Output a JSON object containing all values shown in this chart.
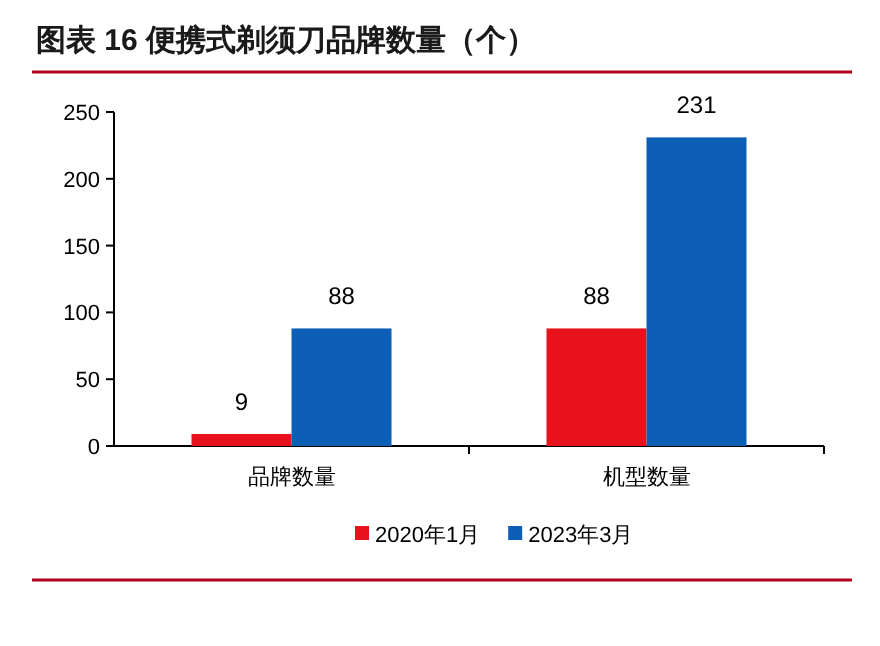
{
  "chart_data": {
    "type": "bar",
    "title": "图表 16 便携式剃须刀品牌数量（个）",
    "categories": [
      "品牌数量",
      "机型数量"
    ],
    "series": [
      {
        "name": "2020年1月",
        "color": "#e8121c",
        "values": [
          9,
          88
        ]
      },
      {
        "name": "2023年3月",
        "color": "#0c5fb4",
        "values": [
          88,
          231
        ]
      }
    ],
    "ylim": [
      0,
      250
    ],
    "yticks": [
      0,
      50,
      100,
      150,
      200,
      250
    ],
    "data_labels": true,
    "legend": "bottom",
    "grid": false
  }
}
